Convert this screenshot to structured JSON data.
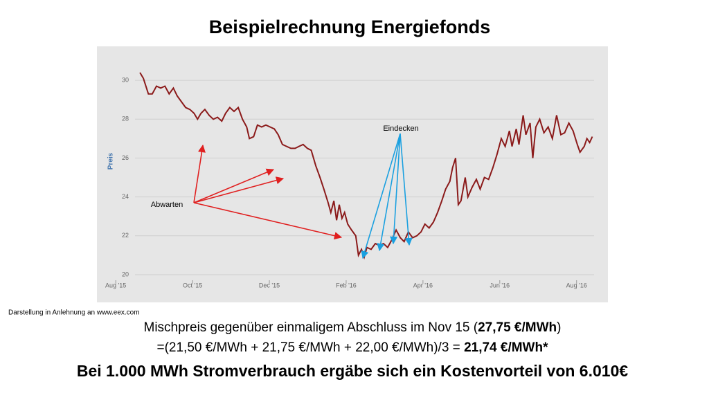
{
  "title": "Beispielrechnung Energiefonds",
  "chart_data": {
    "type": "line",
    "ylabel": "Preis",
    "color": "#8b1a1a",
    "grid": true,
    "annotations": [
      "Abwarten",
      "Eindecken"
    ],
    "xlim": [
      -0.4,
      12.6
    ],
    "xticks": [
      {
        "value": 0,
        "label": "Aug '15"
      },
      {
        "value": 2,
        "label": "Oct '15"
      },
      {
        "value": 4,
        "label": "Dec '15"
      },
      {
        "value": 6,
        "label": "Feb '16"
      },
      {
        "value": 8,
        "label": "Apr '16"
      },
      {
        "value": 10,
        "label": "Jun '16"
      },
      {
        "value": 12,
        "label": "Aug '16"
      }
    ],
    "ylim": [
      19.5,
      31
    ],
    "yticks": [
      20,
      22,
      24,
      26,
      28,
      30
    ],
    "x": [
      0.63,
      0.72,
      0.85,
      0.95,
      1.06,
      1.17,
      1.28,
      1.39,
      1.5,
      1.6,
      1.71,
      1.82,
      1.93,
      2.04,
      2.13,
      2.22,
      2.32,
      2.43,
      2.54,
      2.65,
      2.76,
      2.86,
      2.97,
      3.08,
      3.19,
      3.3,
      3.41,
      3.48,
      3.59,
      3.69,
      3.8,
      3.91,
      4.02,
      4.13,
      4.23,
      4.34,
      4.45,
      4.56,
      4.67,
      4.77,
      4.88,
      4.99,
      5.09,
      5.21,
      5.32,
      5.42,
      5.53,
      5.6,
      5.68,
      5.75,
      5.82,
      5.89,
      5.96,
      6.04,
      6.14,
      6.25,
      6.32,
      6.4,
      6.47,
      6.54,
      6.65,
      6.76,
      6.86,
      6.97,
      7.08,
      7.19,
      7.3,
      7.41,
      7.51,
      7.62,
      7.73,
      7.84,
      7.95,
      8.05,
      8.16,
      8.27,
      8.38,
      8.49,
      8.59,
      8.7,
      8.77,
      8.85,
      8.92,
      8.99,
      9.1,
      9.17,
      9.28,
      9.39,
      9.49,
      9.6,
      9.71,
      9.82,
      9.93,
      10.04,
      10.14,
      10.25,
      10.32,
      10.43,
      10.5,
      10.61,
      10.68,
      10.79,
      10.86,
      10.94,
      11.04,
      11.15,
      11.26,
      11.37,
      11.48,
      11.59,
      11.69,
      11.8,
      11.91,
      12.02,
      12.09,
      12.2,
      12.27,
      12.34,
      12.41
    ],
    "values": [
      30.4,
      30.1,
      29.3,
      29.3,
      29.7,
      29.6,
      29.7,
      29.3,
      29.6,
      29.2,
      28.9,
      28.6,
      28.5,
      28.3,
      28.0,
      28.3,
      28.5,
      28.2,
      28.0,
      28.1,
      27.9,
      28.3,
      28.6,
      28.4,
      28.6,
      28.0,
      27.6,
      27.0,
      27.1,
      27.7,
      27.6,
      27.7,
      27.6,
      27.5,
      27.2,
      26.7,
      26.6,
      26.5,
      26.5,
      26.6,
      26.7,
      26.5,
      26.4,
      25.6,
      25.0,
      24.4,
      23.7,
      23.2,
      23.8,
      22.8,
      23.6,
      22.9,
      23.2,
      22.6,
      22.3,
      22.0,
      21.0,
      21.3,
      20.9,
      21.4,
      21.3,
      21.6,
      21.5,
      21.6,
      21.4,
      21.8,
      22.3,
      21.9,
      21.7,
      22.2,
      21.9,
      22.0,
      22.2,
      22.6,
      22.4,
      22.7,
      23.2,
      23.8,
      24.4,
      24.8,
      25.5,
      26.0,
      23.6,
      23.8,
      25.0,
      24.0,
      24.5,
      24.9,
      24.4,
      25.0,
      24.9,
      25.5,
      26.2,
      27.0,
      26.6,
      27.4,
      26.6,
      27.5,
      26.7,
      28.2,
      27.2,
      27.8,
      26.0,
      27.6,
      28.0,
      27.3,
      27.6,
      27.0,
      28.2,
      27.2,
      27.3,
      27.8,
      27.4,
      26.7,
      26.3,
      26.6,
      27.0,
      26.8,
      27.1
    ]
  },
  "footnote": "Darstellung in Anlehnung an www.eex.com",
  "line1": [
    "Mischpreis gegenüber einmaligem Abschluss im Nov 15 (",
    "27,75 €/MWh",
    ")"
  ],
  "line2": [
    "=(21,50 €/MWh + 21,75 €/MWh + 22,00 €/MWh)/3 = ",
    "21,74 €/MWh*"
  ],
  "line3": "Bei 1.000 MWh Stromverbrauch ergäbe sich ein Kostenvorteil von 6.010€"
}
